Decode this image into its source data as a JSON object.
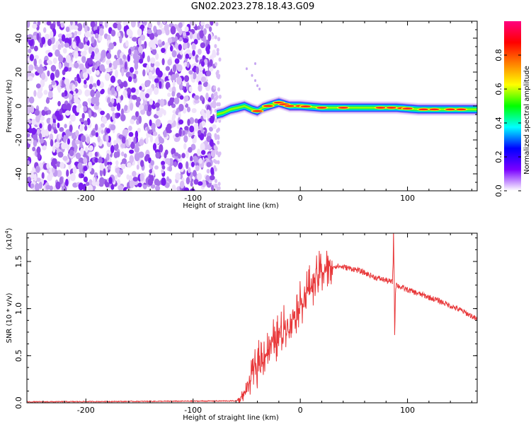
{
  "title": "GN02.2023.278.18.43.G09",
  "chart_data": [
    {
      "type": "heatmap",
      "xlabel": "Height of straight line (km)",
      "ylabel": "Frequency (Hz)",
      "xlim": [
        -255,
        165
      ],
      "ylim": [
        -50,
        50
      ],
      "x_ticks": [
        "-200",
        "-100",
        "0",
        "100"
      ],
      "x_tick_values": [
        -200,
        -100,
        0,
        100
      ],
      "y_ticks": [
        "40",
        "20",
        "0",
        "-20",
        "-40"
      ],
      "y_tick_values": [
        40,
        20,
        0,
        -20,
        -40
      ],
      "noise_region_x": [
        -255,
        -80
      ],
      "signal_track": {
        "x": [
          -78,
          -72,
          -65,
          -58,
          -52,
          -45,
          -40,
          -35,
          -30,
          -25,
          -20,
          -15,
          -10,
          0,
          20,
          50,
          75,
          90,
          110,
          140,
          165
        ],
        "y": [
          -5,
          -4,
          -2,
          -1,
          0,
          -2,
          -3,
          -1,
          0,
          1,
          2,
          1,
          0,
          0,
          -1,
          -1,
          -1,
          -1,
          -2,
          -2,
          -2
        ]
      },
      "colorbar": {
        "label": "Normalized spectral amplitude",
        "ticks": [
          "0.0",
          "0.2",
          "0.4",
          "0.6",
          "0.8"
        ],
        "tick_values": [
          0.0,
          0.2,
          0.4,
          0.6,
          0.8
        ],
        "range": [
          0,
          1
        ],
        "colors": [
          "#ffffff",
          "#7a00ff",
          "#0000ff",
          "#00ffff",
          "#00ff00",
          "#ffff00",
          "#ff8000",
          "#ff0000",
          "#ff0080"
        ]
      }
    },
    {
      "type": "line",
      "xlabel": "Height of straight line (km)",
      "ylabel": "SNR (10 * v/v)",
      "y_multiplier": "(x10",
      "y_multiplier_exp": "4",
      "y_multiplier_close": ")",
      "xlim": [
        -255,
        165
      ],
      "ylim": [
        0,
        1.8
      ],
      "x_ticks": [
        "-200",
        "-100",
        "0",
        "100"
      ],
      "x_tick_values": [
        -200,
        -100,
        0,
        100
      ],
      "y_ticks": [
        "0.0",
        "0.5",
        "1.0",
        "1.5"
      ],
      "y_tick_values": [
        0.0,
        0.5,
        1.0,
        1.5
      ],
      "color": "#e8383a",
      "series": [
        {
          "x": [
            -255,
            -150,
            -60,
            -55,
            -50,
            -45,
            -40,
            -35,
            -30,
            -25,
            -20,
            -15,
            -10,
            -5,
            0,
            5,
            10,
            15,
            20,
            25,
            30,
            35,
            40,
            50,
            60,
            70,
            80,
            86,
            87,
            88,
            89,
            90,
            95,
            100,
            110,
            120,
            130,
            140,
            150,
            160,
            165
          ],
          "y": [
            0.01,
            0.015,
            0.02,
            0.05,
            0.15,
            0.3,
            0.4,
            0.5,
            0.55,
            0.65,
            0.7,
            0.8,
            0.85,
            0.95,
            1.05,
            1.15,
            1.25,
            1.33,
            1.4,
            1.43,
            1.45,
            1.45,
            1.44,
            1.42,
            1.38,
            1.33,
            1.3,
            1.28,
            1.78,
            0.82,
            1.3,
            1.25,
            1.22,
            1.2,
            1.16,
            1.12,
            1.08,
            1.03,
            0.98,
            0.92,
            0.88
          ]
        }
      ]
    }
  ]
}
